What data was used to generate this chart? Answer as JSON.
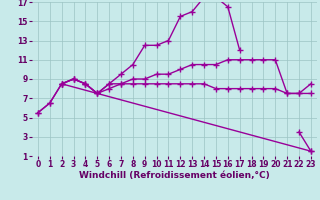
{
  "bg_color": "#c8eaea",
  "grid_color": "#9cc4c4",
  "line_color": "#990099",
  "line_width": 1.0,
  "marker": "+",
  "marker_size": 4,
  "marker_ew": 1.0,
  "xlabel": "Windchill (Refroidissement éolien,°C)",
  "xlabel_fontsize": 6.5,
  "xlim": [
    -0.5,
    23.5
  ],
  "ylim": [
    1,
    17
  ],
  "xticks": [
    0,
    1,
    2,
    3,
    4,
    5,
    6,
    7,
    8,
    9,
    10,
    11,
    12,
    13,
    14,
    15,
    16,
    17,
    18,
    19,
    20,
    21,
    22,
    23
  ],
  "yticks": [
    1,
    3,
    5,
    7,
    9,
    11,
    13,
    15,
    17
  ],
  "tick_fontsize": 5.5,
  "tick_color": "#660066",
  "series": [
    {
      "x": [
        0,
        1,
        2,
        3,
        4,
        5,
        6,
        7,
        8,
        9,
        10,
        11,
        12,
        13,
        14,
        15,
        16,
        17,
        18,
        19,
        20,
        21,
        22,
        23
      ],
      "y": [
        5.5,
        6.5,
        8.5,
        9.0,
        8.5,
        7.5,
        8.5,
        9.5,
        10.5,
        12.5,
        12.5,
        13.0,
        15.5,
        16.0,
        17.5,
        17.5,
        16.5,
        12.0,
        null,
        null,
        null,
        null,
        3.5,
        1.5
      ]
    },
    {
      "x": [
        0,
        1,
        2,
        3,
        4,
        5,
        6,
        7,
        8,
        9,
        10,
        11,
        12,
        13,
        14,
        15,
        16,
        17,
        18,
        19,
        20,
        21,
        22,
        23
      ],
      "y": [
        5.5,
        6.5,
        8.5,
        9.0,
        8.5,
        7.5,
        8.5,
        8.5,
        9.0,
        9.0,
        9.5,
        9.5,
        10.0,
        10.5,
        10.5,
        10.5,
        11.0,
        11.0,
        11.0,
        11.0,
        11.0,
        7.5,
        7.5,
        8.5
      ]
    },
    {
      "x": [
        2,
        3,
        4,
        5,
        6,
        7,
        8,
        9,
        10,
        11,
        12,
        13,
        14,
        15,
        16,
        17,
        18,
        19,
        20,
        21,
        22,
        23
      ],
      "y": [
        8.5,
        9.0,
        8.5,
        7.5,
        8.0,
        8.5,
        8.5,
        8.5,
        8.5,
        8.5,
        8.5,
        8.5,
        8.5,
        8.0,
        8.0,
        8.0,
        8.0,
        8.0,
        8.0,
        7.5,
        7.5,
        7.5
      ]
    },
    {
      "x": [
        2,
        23
      ],
      "y": [
        8.5,
        1.5
      ]
    }
  ]
}
